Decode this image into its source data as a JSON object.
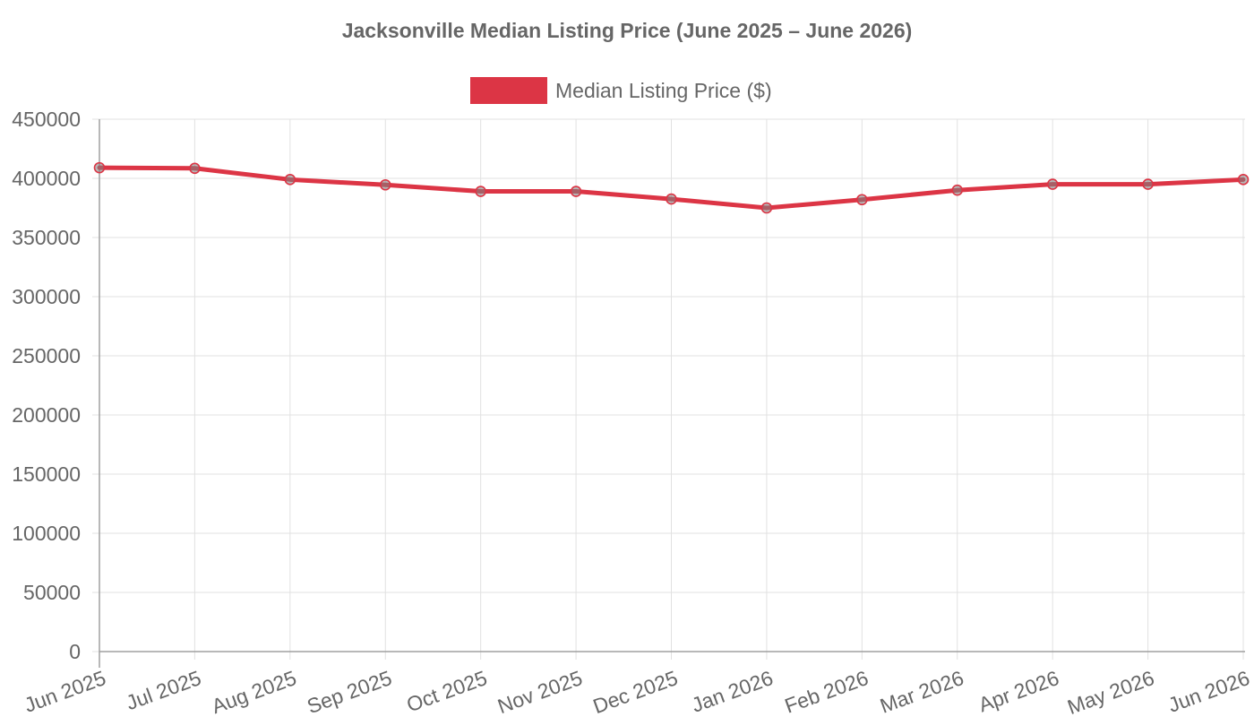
{
  "chart_data": {
    "type": "line",
    "title": "Jacksonville Median Listing Price (June 2025 – June 2026)",
    "xlabel": "",
    "ylabel": "",
    "categories": [
      "Jun 2025",
      "Jul 2025",
      "Aug 2025",
      "Sep 2025",
      "Oct 2025",
      "Nov 2025",
      "Dec 2025",
      "Jan 2026",
      "Feb 2026",
      "Mar 2026",
      "Apr 2026",
      "May 2026",
      "Jun 2026"
    ],
    "series": [
      {
        "name": "Median Listing Price ($)",
        "values": [
          409000,
          408500,
          399000,
          394500,
          389000,
          389000,
          382500,
          375000,
          382000,
          390000,
          395000,
          395000,
          399000
        ],
        "color": "#dc3545"
      }
    ],
    "ylim": [
      0,
      450000
    ],
    "yticks": [
      "0",
      "50000",
      "100000",
      "150000",
      "200000",
      "250000",
      "300000",
      "350000",
      "400000",
      "450000"
    ],
    "grid": true,
    "legend_position": "top"
  }
}
